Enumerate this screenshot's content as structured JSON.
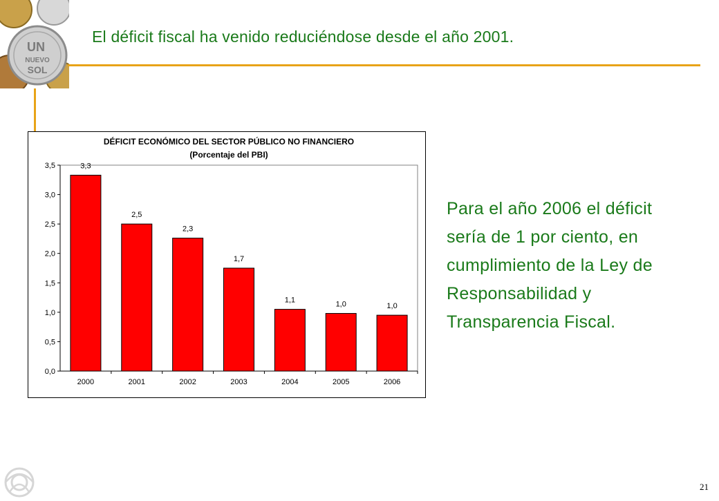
{
  "slide": {
    "title": "El déficit fiscal ha venido reduciéndose desde el año 2001.",
    "side_text": "Para el año 2006 el déficit sería de 1 por ciento, en cumplimiento de la Ley de Responsabilidad y Transparencia Fiscal.",
    "page_number": "21",
    "coin_text": [
      "UN",
      "NUEVO",
      "SOL"
    ],
    "accent_color": "#e8a317",
    "text_color": "#1a7a1a"
  },
  "chart_data": {
    "type": "bar",
    "title": "DÉFICIT ECONÓMICO DEL SECTOR PÚBLICO NO FINANCIERO",
    "subtitle": "(Porcentaje del PBI)",
    "categories": [
      "2000",
      "2001",
      "2002",
      "2003",
      "2004",
      "2005",
      "2006"
    ],
    "values": [
      3.3,
      2.5,
      2.3,
      1.7,
      1.1,
      1.0,
      1.0
    ],
    "data_labels": [
      "3,3",
      "2,5",
      "2,3",
      "1,7",
      "1,1",
      "1,0",
      "1,0"
    ],
    "bar_values_plotted": [
      3.33,
      2.5,
      2.26,
      1.75,
      1.05,
      0.98,
      0.95
    ],
    "yticks": [
      "0,0",
      "0,5",
      "1,0",
      "1,5",
      "2,0",
      "2,5",
      "3,0",
      "3,5"
    ],
    "ylim": [
      0,
      3.5
    ],
    "xlabel": "",
    "ylabel": "",
    "grid": false,
    "bar_color": "#ff0000"
  }
}
